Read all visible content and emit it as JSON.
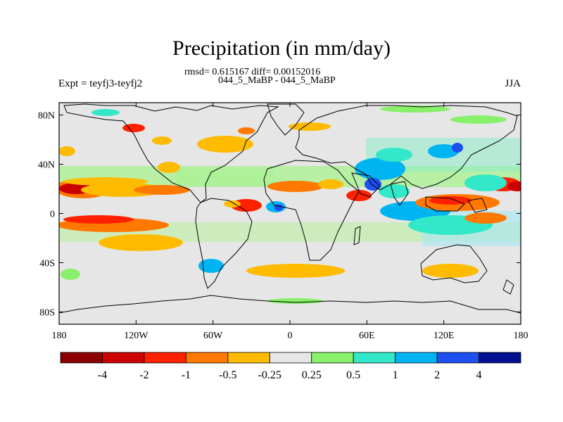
{
  "title": "Precipitation (in mm/day)",
  "stats_line": "rmsd= 0.615167 diff= 0.00152016",
  "experiment_line": "044_5_MaBP - 044_5_MaBP",
  "left_string": "Expt = teyfj3-teyfj2",
  "right_string": "JJA",
  "map": {
    "lon_ticks": [
      "180",
      "120W",
      "60W",
      "0",
      "60E",
      "120E",
      "180"
    ],
    "lat_ticks": [
      "80N",
      "40N",
      "0",
      "40S",
      "80S"
    ],
    "background_color": "#e6e6e6"
  },
  "colorbar": {
    "colors": [
      "#8b0000",
      "#cc0000",
      "#ff2000",
      "#ff7800",
      "#ffbb00",
      "#e6e6e6",
      "#88f06a",
      "#33e8c8",
      "#00b4f2",
      "#1e4ff0",
      "#001090"
    ],
    "labels": [
      "-4",
      "-2",
      "-1",
      "-0.5",
      "-0.25",
      "0.25",
      "0.5",
      "1",
      "2",
      "4"
    ]
  }
}
